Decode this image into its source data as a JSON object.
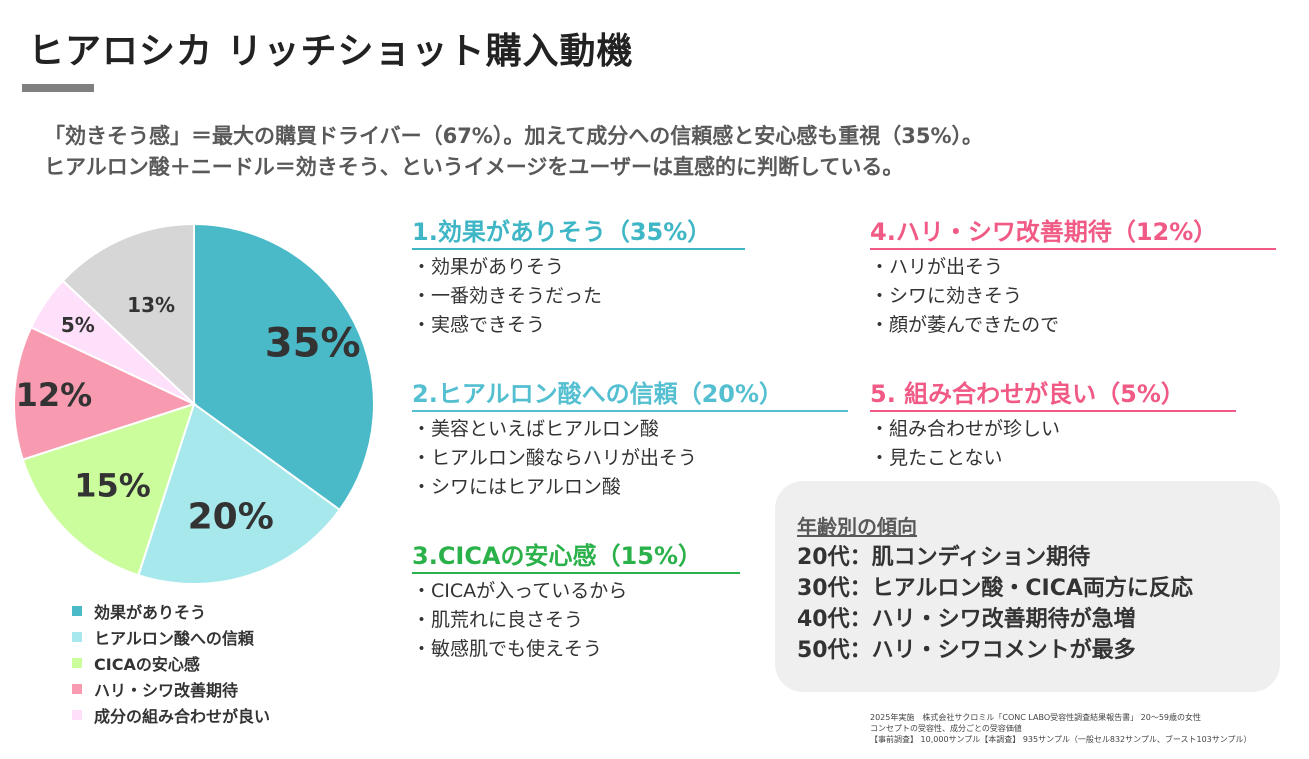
{
  "title": "ヒアロシカ リッチショット購入動機",
  "subtitle": [
    "「効きそう感」＝最大の購買ドライバー（67%）。加えて成分への信頼感と安心感も重視（35%）。",
    "ヒアルロン酸＋ニードル＝効きそう、というイメージをユーザーは直感的に判断している。"
  ],
  "chart_data": {
    "type": "pie",
    "categories": [
      "効果がありそう",
      "ヒアルロン酸への信頼",
      "CICAの安心感",
      "ハリ・シワ改善期待",
      "成分の組み合わせが良い",
      ""
    ],
    "values": [
      35,
      20,
      15,
      12,
      5,
      13
    ],
    "labels": [
      "35%",
      "20%",
      "15%",
      "12%",
      "5%",
      "13%"
    ],
    "colors": [
      "#4bbac8",
      "#a6e8ec",
      "#ccfd9c",
      "#f99bb0",
      "#fee0fa",
      "#d6d6d6"
    ],
    "start": "12 o'clock",
    "direction": "clockwise",
    "legend_position": "bottom-left"
  },
  "sections": [
    {
      "heading": "1.効果がありそう（35%）",
      "color": "#3fb6c6",
      "items": [
        "効果がありそう",
        "一番効きそうだった",
        "実感できそう"
      ]
    },
    {
      "heading": "2.ヒアルロン酸への信頼（20%）",
      "color": "#54bfd0",
      "items": [
        "美容といえばヒアルロン酸",
        "ヒアルロン酸ならハリが出そう",
        "シワにはヒアルロン酸"
      ]
    },
    {
      "heading": "3.CICAの安心感（15%）",
      "color": "#2bb14a",
      "items": [
        "CICAが入っているから",
        "肌荒れに良さそう",
        "敏感肌でも使えそう"
      ]
    },
    {
      "heading": "4.ハリ・シワ改善期待（12%）",
      "color": "#f05a85",
      "items": [
        "ハリが出そう",
        "シワに効きそう",
        "顔が萎んできたので"
      ]
    },
    {
      "heading": "5. 組み合わせが良い（5%）",
      "color": "#f05a85",
      "items": [
        "組み合わせが珍しい",
        "見たことない"
      ]
    }
  ],
  "age": {
    "heading": "年齢別の傾向",
    "rows": [
      "20代：肌コンディション期待",
      "30代：ヒアルロン酸・CICA両方に反応",
      "40代：ハリ・シワ改善期待が急増",
      "50代：ハリ・シワコメントが最多"
    ]
  },
  "footnote": [
    "2025年実施　株式会社サクロミル「CONC LABO受容性調査結果報告書」 20〜59歳の女性",
    "コンセプトの受容性、成分ごとの受容価値",
    "【事前調査】 10,000サンプル【本調査】 935サンプル（一般セル832サンプル、ブースト103サンプル）"
  ]
}
